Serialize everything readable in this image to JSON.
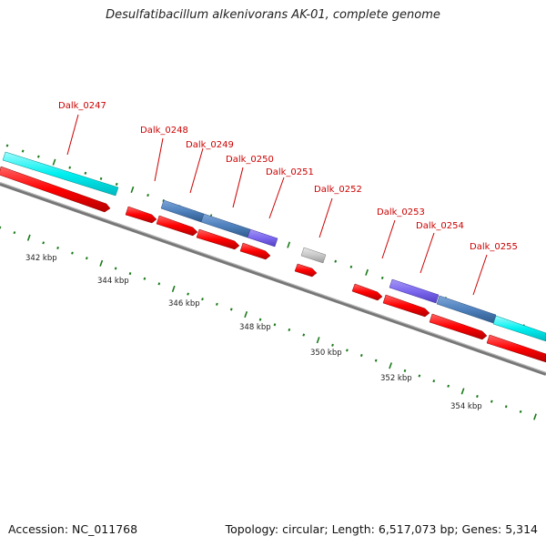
{
  "title": "Desulfatibacillum alkenivorans AK-01, complete genome",
  "footer": {
    "accession": "Accession: NC_011768",
    "summary": "Topology: circular; Length: 6,517,073 bp; Genes: 5,314"
  },
  "colors": {
    "cds_red": "#ff0000",
    "steel_blue": "#4f81bd",
    "purple": "#7b68ee",
    "cyan": "#00f0f0",
    "gray_feature": "#c8c8c8",
    "backbone": "#777777",
    "tick_green": "#1a7a1a",
    "label_red": "#cc0000"
  },
  "genes": [
    {
      "id": "Dalk_0247",
      "label": "Dalk_0247"
    },
    {
      "id": "Dalk_0248",
      "label": "Dalk_0248"
    },
    {
      "id": "Dalk_0249",
      "label": "Dalk_0249"
    },
    {
      "id": "Dalk_0250",
      "label": "Dalk_0250"
    },
    {
      "id": "Dalk_0251",
      "label": "Dalk_0251"
    },
    {
      "id": "Dalk_0252",
      "label": "Dalk_0252"
    },
    {
      "id": "Dalk_0253",
      "label": "Dalk_0253"
    },
    {
      "id": "Dalk_0254",
      "label": "Dalk_0254"
    },
    {
      "id": "Dalk_0255",
      "label": "Dalk_0255"
    }
  ],
  "ruler": [
    "342 kbp",
    "344 kbp",
    "346 kbp",
    "348 kbp",
    "350 kbp",
    "352 kbp",
    "354 kbp"
  ]
}
